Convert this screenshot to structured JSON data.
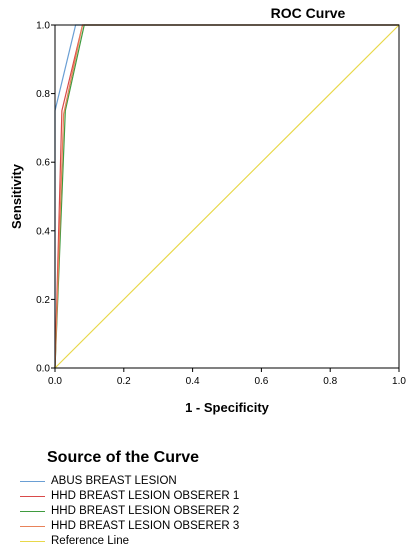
{
  "chart_data": {
    "type": "line",
    "title": "ROC Curve",
    "xlabel": "1 - Specificity",
    "ylabel": "Sensitivity",
    "xlim": [
      0,
      1
    ],
    "ylim": [
      0,
      1
    ],
    "x_ticks": [
      "0.0",
      "0.2",
      "0.4",
      "0.6",
      "0.8",
      "1.0"
    ],
    "y_ticks": [
      "0.0",
      "0.2",
      "0.4",
      "0.6",
      "0.8",
      "1.0"
    ],
    "grid": false,
    "legend": {
      "title": "Source of the Curve",
      "placement": "bottom"
    },
    "series": [
      {
        "name": "ABUS BREAST LESION",
        "color": "#6a9fd4",
        "x": [
          0,
          0,
          0.06,
          1
        ],
        "y": [
          0,
          0.75,
          1,
          1
        ]
      },
      {
        "name": "HHD BREAST LESION OBSERER 1",
        "color": "#d94a4a",
        "x": [
          0,
          0.02,
          0.08,
          1
        ],
        "y": [
          0,
          0.75,
          1,
          1
        ]
      },
      {
        "name": "HHD BREAST LESION OBSERER 2",
        "color": "#3f9b3f",
        "x": [
          0,
          0.03,
          0.085,
          1
        ],
        "y": [
          0,
          0.75,
          1,
          1
        ]
      },
      {
        "name": "HHD BREAST LESION OBSERER 3",
        "color": "#e8825a",
        "x": [
          0,
          0.025,
          0.08,
          1
        ],
        "y": [
          0,
          0.74,
          1,
          1
        ]
      },
      {
        "name": "Reference Line",
        "color": "#e8d84a",
        "x": [
          0,
          1
        ],
        "y": [
          0,
          1
        ]
      }
    ]
  }
}
